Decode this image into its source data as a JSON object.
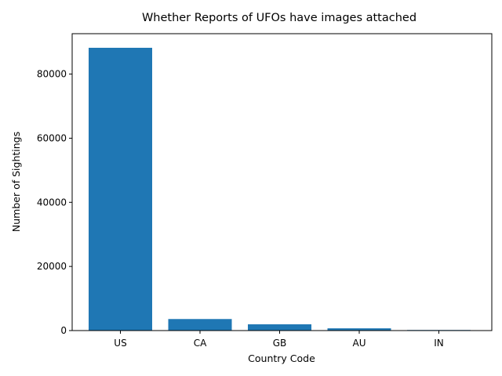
{
  "chart_data": {
    "type": "bar",
    "title": "Whether Reports of UFOs have images attached",
    "xlabel": "Country Code",
    "ylabel": "Number of Sightings",
    "categories": [
      "US",
      "CA",
      "GB",
      "AU",
      "IN"
    ],
    "values": [
      88200,
      3600,
      1950,
      700,
      180
    ],
    "ylim": [
      0,
      92600
    ],
    "yticks": [
      0,
      20000,
      40000,
      60000,
      80000
    ],
    "bar_color": "#1f77b4",
    "grid": false,
    "legend": "none"
  }
}
